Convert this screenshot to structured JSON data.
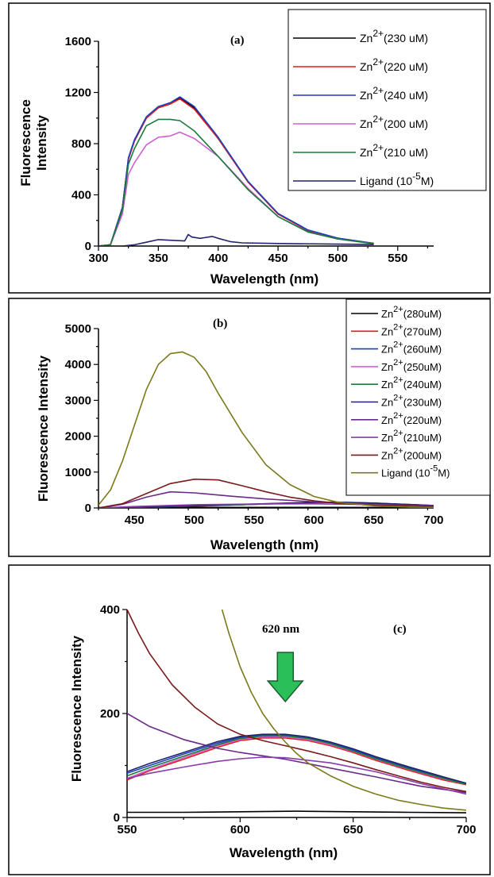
{
  "chart_data": [
    {
      "type": "line",
      "panel_label": "(a)",
      "xlabel": "Wavelength (nm)",
      "ylabel": "Fluorescence Intensity",
      "xlim": [
        300,
        580
      ],
      "ylim": [
        0,
        1600
      ],
      "xticks": [
        300,
        350,
        400,
        450,
        500,
        550
      ],
      "yticks": [
        0,
        400,
        800,
        1200,
        1600
      ],
      "legend_position": "top-right",
      "series": [
        {
          "name": "Zn2+(230 uM)",
          "ion": "Zn",
          "charge": "2+",
          "detail": "(230 uM)",
          "color": "#000000",
          "x": [
            300,
            310,
            320,
            325,
            330,
            340,
            350,
            360,
            368,
            380,
            400,
            425,
            450,
            475,
            500,
            530
          ],
          "y": [
            0,
            10,
            300,
            680,
            820,
            1000,
            1080,
            1110,
            1160,
            1080,
            840,
            500,
            250,
            120,
            60,
            20
          ]
        },
        {
          "name": "Zn2+(220 uM)",
          "ion": "Zn",
          "charge": "2+",
          "detail": "(220 uM)",
          "color": "#e8191e",
          "x": [
            300,
            310,
            320,
            325,
            330,
            340,
            350,
            360,
            368,
            380,
            400,
            425,
            450,
            475,
            500,
            530
          ],
          "y": [
            0,
            10,
            300,
            680,
            820,
            1000,
            1080,
            1110,
            1150,
            1070,
            840,
            500,
            250,
            120,
            60,
            20
          ]
        },
        {
          "name": "Zn2+(240 uM)",
          "ion": "Zn",
          "charge": "2+",
          "detail": "(240 uM)",
          "color": "#1f3fbf",
          "x": [
            300,
            310,
            320,
            325,
            330,
            340,
            350,
            360,
            368,
            380,
            400,
            425,
            450,
            475,
            500,
            530
          ],
          "y": [
            0,
            10,
            300,
            690,
            830,
            1010,
            1090,
            1120,
            1165,
            1090,
            850,
            505,
            255,
            125,
            62,
            22
          ]
        },
        {
          "name": "Zn2+(200 uM)",
          "ion": "Zn",
          "charge": "2+",
          "detail": "(200 uM)",
          "color": "#d060d0",
          "x": [
            300,
            310,
            320,
            325,
            330,
            340,
            350,
            360,
            368,
            380,
            400,
            425,
            450,
            475,
            500,
            530
          ],
          "y": [
            0,
            10,
            250,
            560,
            650,
            790,
            850,
            860,
            890,
            840,
            700,
            450,
            230,
            110,
            55,
            18
          ]
        },
        {
          "name": "Zn2+(210 uM)",
          "ion": "Zn",
          "charge": "2+",
          "detail": "(210 uM)",
          "color": "#1a7a3a",
          "x": [
            300,
            310,
            320,
            325,
            330,
            340,
            350,
            360,
            368,
            380,
            400,
            425,
            450,
            475,
            500,
            530
          ],
          "y": [
            0,
            10,
            280,
            640,
            760,
            940,
            990,
            990,
            980,
            900,
            700,
            440,
            230,
            110,
            55,
            18
          ]
        },
        {
          "name": "Ligand (10-5M)",
          "ion": "Ligand (10",
          "charge": "-5",
          "detail": "M)",
          "color": "#22226e",
          "x": [
            300,
            320,
            330,
            340,
            350,
            360,
            372,
            375,
            378,
            385,
            395,
            400,
            410,
            420,
            450,
            500,
            530
          ],
          "y": [
            0,
            0,
            10,
            30,
            50,
            45,
            40,
            90,
            70,
            60,
            75,
            60,
            35,
            25,
            20,
            15,
            12
          ]
        }
      ]
    },
    {
      "type": "line",
      "panel_label": "(b)",
      "xlabel": "Wavelength (nm)",
      "ylabel": "Fluorescence Intensity",
      "xlim": [
        420,
        700
      ],
      "ylim": [
        0,
        5000
      ],
      "xticks": [
        450,
        500,
        550,
        600,
        650,
        700
      ],
      "yticks": [
        0,
        1000,
        2000,
        3000,
        4000,
        5000
      ],
      "legend_position": "top-right",
      "series": [
        {
          "name": "Zn2+(280uM)",
          "ion": "Zn",
          "charge": "2+",
          "detail": "(280uM)",
          "color": "#000000",
          "x": [
            420,
            500,
            600,
            700
          ],
          "y": [
            10,
            15,
            15,
            12
          ]
        },
        {
          "name": "Zn2+(270uM)",
          "ion": "Zn",
          "charge": "2+",
          "detail": "(270uM)",
          "color": "#e8191e",
          "x": [
            420,
            450,
            500,
            550,
            600,
            620,
            650,
            700
          ],
          "y": [
            0,
            20,
            50,
            100,
            150,
            155,
            130,
            65
          ]
        },
        {
          "name": "Zn2+(260uM)",
          "ion": "Zn",
          "charge": "2+",
          "detail": "(260uM)",
          "color": "#1f3fbf",
          "x": [
            420,
            450,
            500,
            550,
            600,
            620,
            650,
            700
          ],
          "y": [
            0,
            25,
            55,
            105,
            155,
            160,
            135,
            68
          ]
        },
        {
          "name": "Zn2+(250uM)",
          "ion": "Zn",
          "charge": "2+",
          "detail": "(250uM)",
          "color": "#d060d0",
          "x": [
            420,
            450,
            500,
            550,
            600,
            620,
            650,
            700
          ],
          "y": [
            0,
            20,
            50,
            100,
            150,
            155,
            130,
            65
          ]
        },
        {
          "name": "Zn2+(240uM)",
          "ion": "Zn",
          "charge": "2+",
          "detail": "(240uM)",
          "color": "#1a7a3a",
          "x": [
            420,
            450,
            500,
            550,
            600,
            620,
            650,
            700
          ],
          "y": [
            0,
            22,
            52,
            102,
            152,
            158,
            132,
            66
          ]
        },
        {
          "name": "Zn2+(230uM)",
          "ion": "Zn",
          "charge": "2+",
          "detail": "(230uM)",
          "color": "#22226e",
          "x": [
            420,
            450,
            500,
            550,
            600,
            620,
            650,
            700
          ],
          "y": [
            0,
            25,
            60,
            110,
            158,
            162,
            137,
            68
          ]
        },
        {
          "name": "Zn2+(220uM)",
          "ion": "Zn",
          "charge": "2+",
          "detail": "(220uM)",
          "color": "#6a2a8a",
          "x": [
            420,
            440,
            460,
            480,
            500,
            530,
            560,
            600,
            650,
            700
          ],
          "y": [
            0,
            100,
            300,
            450,
            420,
            330,
            250,
            170,
            100,
            45
          ]
        },
        {
          "name": "Zn2+(210uM)",
          "ion": "Zn",
          "charge": "2+",
          "detail": "(210uM)",
          "color": "#8a3aaa",
          "x": [
            420,
            450,
            500,
            550,
            600,
            650,
            700
          ],
          "y": [
            0,
            40,
            90,
            110,
            115,
            95,
            55
          ]
        },
        {
          "name": "Zn2+(200uM)",
          "ion": "Zn",
          "charge": "2+",
          "detail": "(200uM)",
          "color": "#7a1a1a",
          "x": [
            420,
            440,
            460,
            480,
            500,
            520,
            540,
            560,
            580,
            600,
            620,
            650,
            700
          ],
          "y": [
            0,
            120,
            400,
            680,
            800,
            780,
            620,
            450,
            300,
            200,
            130,
            80,
            45
          ]
        },
        {
          "name": "Ligand (10-5M)",
          "ion": "Ligand (10",
          "charge": "-5",
          "detail": "M)",
          "color": "#7a7a1a",
          "x": [
            420,
            430,
            440,
            450,
            460,
            470,
            480,
            490,
            500,
            510,
            520,
            540,
            560,
            580,
            600,
            620,
            650,
            680,
            700
          ],
          "y": [
            80,
            500,
            1300,
            2300,
            3300,
            4000,
            4300,
            4350,
            4200,
            3800,
            3200,
            2100,
            1200,
            650,
            320,
            160,
            60,
            25,
            15
          ]
        }
      ]
    },
    {
      "type": "line",
      "panel_label": "(c)",
      "annotation": "620 nm",
      "xlabel": "Wavelength (nm)",
      "ylabel": "Fluorescence Intensity",
      "xlim": [
        550,
        700
      ],
      "ylim": [
        0,
        400
      ],
      "xticks": [
        550,
        600,
        650,
        700
      ],
      "yticks": [
        0,
        200,
        400
      ],
      "arrow_at_x": 620,
      "series": [
        {
          "name": "Zn2+(280uM)",
          "color": "#000000",
          "x": [
            550,
            575,
            600,
            625,
            650,
            675,
            700
          ],
          "y": [
            10,
            10,
            11,
            12,
            11,
            10,
            9
          ]
        },
        {
          "name": "Zn2+(270uM)",
          "color": "#e8191e",
          "x": [
            550,
            560,
            575,
            590,
            600,
            610,
            620,
            630,
            640,
            650,
            660,
            675,
            690,
            700
          ],
          "y": [
            72,
            90,
            112,
            135,
            148,
            153,
            153,
            148,
            138,
            125,
            110,
            90,
            72,
            63
          ]
        },
        {
          "name": "Zn2+(260uM)",
          "color": "#1f3fbf",
          "x": [
            550,
            560,
            575,
            590,
            600,
            610,
            620,
            630,
            640,
            650,
            660,
            675,
            690,
            700
          ],
          "y": [
            85,
            100,
            122,
            143,
            154,
            158,
            158,
            153,
            143,
            130,
            115,
            95,
            76,
            65
          ]
        },
        {
          "name": "Zn2+(250uM)",
          "color": "#d060d0",
          "x": [
            550,
            560,
            575,
            590,
            600,
            610,
            620,
            630,
            640,
            650,
            660,
            675,
            690,
            700
          ],
          "y": [
            75,
            92,
            115,
            138,
            150,
            155,
            155,
            150,
            140,
            127,
            112,
            92,
            74,
            64
          ]
        },
        {
          "name": "Zn2+(240uM)",
          "color": "#1a7a3a",
          "x": [
            550,
            560,
            575,
            590,
            600,
            610,
            620,
            630,
            640,
            650,
            660,
            675,
            690,
            700
          ],
          "y": [
            80,
            96,
            118,
            140,
            152,
            157,
            157,
            152,
            142,
            128,
            113,
            93,
            75,
            64
          ]
        },
        {
          "name": "Zn2+(230uM)",
          "color": "#22226e",
          "x": [
            550,
            560,
            575,
            590,
            600,
            610,
            620,
            630,
            640,
            650,
            660,
            675,
            690,
            700
          ],
          "y": [
            88,
            104,
            125,
            146,
            156,
            160,
            160,
            155,
            145,
            132,
            117,
            97,
            78,
            66
          ]
        },
        {
          "name": "Zn2+(220uM)",
          "color": "#6a2a8a",
          "x": [
            550,
            560,
            575,
            590,
            600,
            620,
            640,
            660,
            680,
            700
          ],
          "y": [
            200,
            175,
            150,
            133,
            125,
            112,
            95,
            78,
            60,
            48
          ]
        },
        {
          "name": "Zn2+(210uM)",
          "color": "#8a3aaa",
          "x": [
            550,
            560,
            575,
            590,
            600,
            610,
            620,
            640,
            660,
            680,
            700
          ],
          "y": [
            75,
            85,
            97,
            108,
            113,
            116,
            115,
            105,
            88,
            65,
            45
          ]
        },
        {
          "name": "Zn2+(200uM)",
          "color": "#7a1a1a",
          "x": [
            550,
            555,
            560,
            570,
            580,
            590,
            600,
            610,
            620,
            630,
            640,
            650,
            660,
            670,
            680,
            690,
            700
          ],
          "y": [
            400,
            355,
            315,
            255,
            212,
            180,
            160,
            148,
            138,
            128,
            117,
            105,
            92,
            80,
            68,
            58,
            50
          ]
        },
        {
          "name": "Ligand (10-5M)",
          "color": "#7a7a1a",
          "x": [
            592,
            595,
            600,
            605,
            610,
            615,
            620,
            625,
            630,
            640,
            650,
            660,
            670,
            680,
            690,
            700
          ],
          "y": [
            400,
            355,
            290,
            240,
            200,
            170,
            145,
            123,
            105,
            80,
            60,
            45,
            33,
            25,
            18,
            14
          ]
        }
      ]
    }
  ]
}
